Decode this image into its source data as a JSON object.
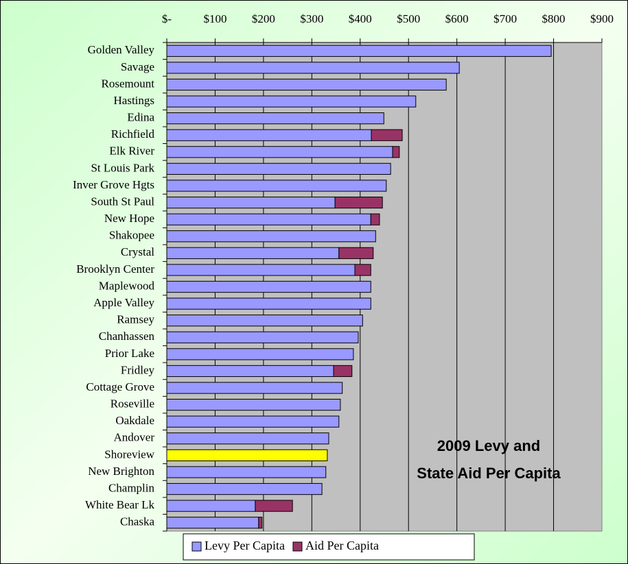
{
  "chart_data": {
    "type": "stacked_barh",
    "annotation": [
      "2009 Levy and",
      "State Aid Per Capita"
    ],
    "categories": [
      "Golden Valley",
      "Savage",
      "Rosemount",
      "Hastings",
      "Edina",
      "Richfield",
      "Elk River",
      "St Louis Park",
      "Inver Grove Hgts",
      "South St Paul",
      "New Hope",
      "Shakopee",
      "Crystal",
      "Brooklyn Center",
      "Maplewood",
      "Apple Valley",
      "Ramsey",
      "Chanhassen",
      "Prior Lake",
      "Fridley",
      "Cottage Grove",
      "Roseville",
      "Oakdale",
      "Andover",
      "Shoreview",
      "New Brighton",
      "Champlin",
      "White Bear Lk",
      "Chaska"
    ],
    "series": [
      {
        "name": "Levy Per Capita",
        "color": "#9999ff",
        "highlight": {
          "index": 24,
          "color": "#ffff00"
        },
        "values": [
          795,
          605,
          578,
          515,
          449,
          423,
          467,
          463,
          454,
          348,
          422,
          432,
          356,
          389,
          422,
          422,
          405,
          396,
          386,
          345,
          363,
          359,
          356,
          335,
          332,
          329,
          321,
          183,
          190
        ]
      },
      {
        "name": "Aid Per Capita",
        "color": "#993366",
        "values": [
          null,
          null,
          null,
          null,
          null,
          64,
          14,
          null,
          null,
          98,
          18,
          null,
          71,
          33,
          null,
          null,
          null,
          null,
          null,
          38,
          null,
          null,
          null,
          null,
          null,
          null,
          null,
          77,
          7
        ]
      }
    ],
    "xlim": [
      0,
      900
    ],
    "xticks": [
      {
        "value": 0,
        "label": "$-"
      },
      {
        "value": 100,
        "label": "$100"
      },
      {
        "value": 200,
        "label": "$200"
      },
      {
        "value": 300,
        "label": "$300"
      },
      {
        "value": 400,
        "label": "$400"
      },
      {
        "value": 500,
        "label": "$500"
      },
      {
        "value": 600,
        "label": "$600"
      },
      {
        "value": 700,
        "label": "$700"
      },
      {
        "value": 800,
        "label": "$800"
      },
      {
        "value": 900,
        "label": "$900"
      }
    ],
    "grid": true,
    "legend": "bottom"
  }
}
